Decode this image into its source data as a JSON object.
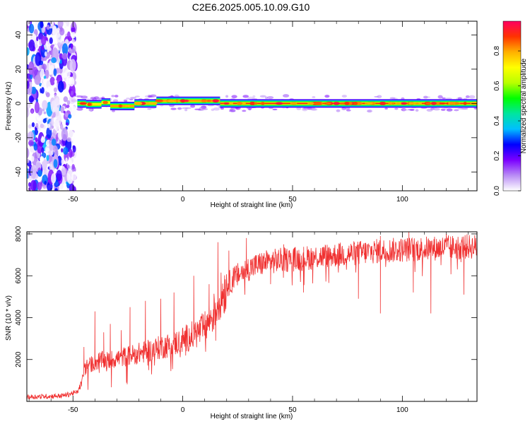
{
  "title": "C2E6.2025.005.10.09.G10",
  "chart_data": [
    {
      "type": "heatmap",
      "xlabel": "Height of straight line (km)",
      "ylabel": "Frequency (Hz)",
      "xlim": [
        -71,
        134
      ],
      "ylim": [
        -51,
        48
      ],
      "x_ticks": [
        "-50",
        "0",
        "50",
        "100"
      ],
      "x_tick_values": [
        -50,
        0,
        50,
        100
      ],
      "y_ticks": [
        "-40",
        "-20",
        "0",
        "20",
        "40"
      ],
      "y_tick_values": [
        -40,
        -20,
        0,
        20,
        40
      ],
      "colorbar": {
        "label": "Normalized spectral amplitude",
        "ticks": [
          "0.0",
          "0.2",
          "0.4",
          "0.6",
          "0.8"
        ],
        "tick_values": [
          0.0,
          0.2,
          0.4,
          0.6,
          0.8
        ],
        "range": [
          0,
          0.97
        ],
        "colors": [
          "#ffffff",
          "#b98cf5",
          "#7b00ff",
          "#0000ff",
          "#00bfff",
          "#00e5a0",
          "#00ff00",
          "#b8ff00",
          "#ffff00",
          "#ffb000",
          "#ff3300",
          "#ff0060"
        ]
      },
      "noise_region_km": [
        -71,
        -49
      ],
      "line_segments": [
        {
          "x0": -48,
          "x1": -44,
          "freq": 0.0,
          "amp": 0.55
        },
        {
          "x0": -44,
          "x1": -37,
          "freq": -0.5,
          "amp": 0.75
        },
        {
          "x0": -37,
          "x1": -33,
          "freq": 0.5,
          "amp": 0.7
        },
        {
          "x0": -33,
          "x1": -22,
          "freq": -1.5,
          "amp": 0.85
        },
        {
          "x0": -22,
          "x1": -12,
          "freq": 0.0,
          "amp": 0.85
        },
        {
          "x0": -12,
          "x1": 17,
          "freq": 1.5,
          "amp": 0.85
        },
        {
          "x0": 17,
          "x1": 134,
          "freq": 0.0,
          "amp": 0.92
        }
      ]
    },
    {
      "type": "line",
      "xlabel": "Height of straight line (km)",
      "ylabel": "SNR (10 * v/v)",
      "xlim": [
        -71,
        134
      ],
      "ylim": [
        0,
        8100
      ],
      "x_ticks": [
        "-50",
        "0",
        "50",
        "100"
      ],
      "x_tick_values": [
        -50,
        0,
        50,
        100
      ],
      "y_ticks": [
        "2000",
        "4000",
        "6000",
        "8000"
      ],
      "y_tick_values": [
        2000,
        4000,
        6000,
        8000
      ],
      "color": "#f03030",
      "series": [
        {
          "x": [
            -71,
            -55,
            -48,
            -46,
            -45,
            -44,
            -42,
            -40,
            -38,
            -34,
            -30,
            -26,
            -22,
            -18,
            -14,
            -10,
            -6,
            -2,
            2,
            6,
            10,
            14,
            17,
            20,
            24,
            28,
            32,
            38,
            44,
            50,
            60,
            70,
            80,
            90,
            100,
            110,
            120,
            130,
            134
          ],
          "y": [
            220,
            280,
            450,
            900,
            1500,
            1700,
            1800,
            1900,
            2000,
            2000,
            2100,
            2200,
            2300,
            2400,
            2500,
            2650,
            2750,
            2900,
            3100,
            3300,
            3600,
            4300,
            5100,
            5600,
            6000,
            6300,
            6500,
            6700,
            6800,
            6850,
            6950,
            7050,
            7150,
            7250,
            7300,
            7350,
            7400,
            7450,
            7450
          ],
          "spikes": [
            {
              "x": -45,
              "y": 2600
            },
            {
              "x": -40,
              "y": 4300
            },
            {
              "x": -36,
              "y": 3300
            },
            {
              "x": -33,
              "y": 3700
            },
            {
              "x": -28,
              "y": 3400
            },
            {
              "x": -24,
              "y": 4500
            },
            {
              "x": -17,
              "y": 4800
            },
            {
              "x": -10,
              "y": 4900
            },
            {
              "x": -4,
              "y": 5200
            },
            {
              "x": 5,
              "y": 6000
            },
            {
              "x": 12,
              "y": 5600
            },
            {
              "x": 16,
              "y": 7600
            },
            {
              "x": 21,
              "y": 7200
            },
            {
              "x": 29,
              "y": 7800
            },
            {
              "x": 46,
              "y": 7500
            },
            {
              "x": 90,
              "y": 7900
            },
            {
              "x": 103,
              "y": 8100
            },
            {
              "x": 120,
              "y": 8000
            }
          ],
          "dips": [
            {
              "x": 15,
              "y": 2900
            },
            {
              "x": 40,
              "y": 5600
            },
            {
              "x": 55,
              "y": 5200
            },
            {
              "x": 80,
              "y": 4900
            },
            {
              "x": 90,
              "y": 4200
            },
            {
              "x": 105,
              "y": 5200
            },
            {
              "x": 113,
              "y": 4200
            },
            {
              "x": 128,
              "y": 5100
            }
          ]
        }
      ]
    }
  ]
}
